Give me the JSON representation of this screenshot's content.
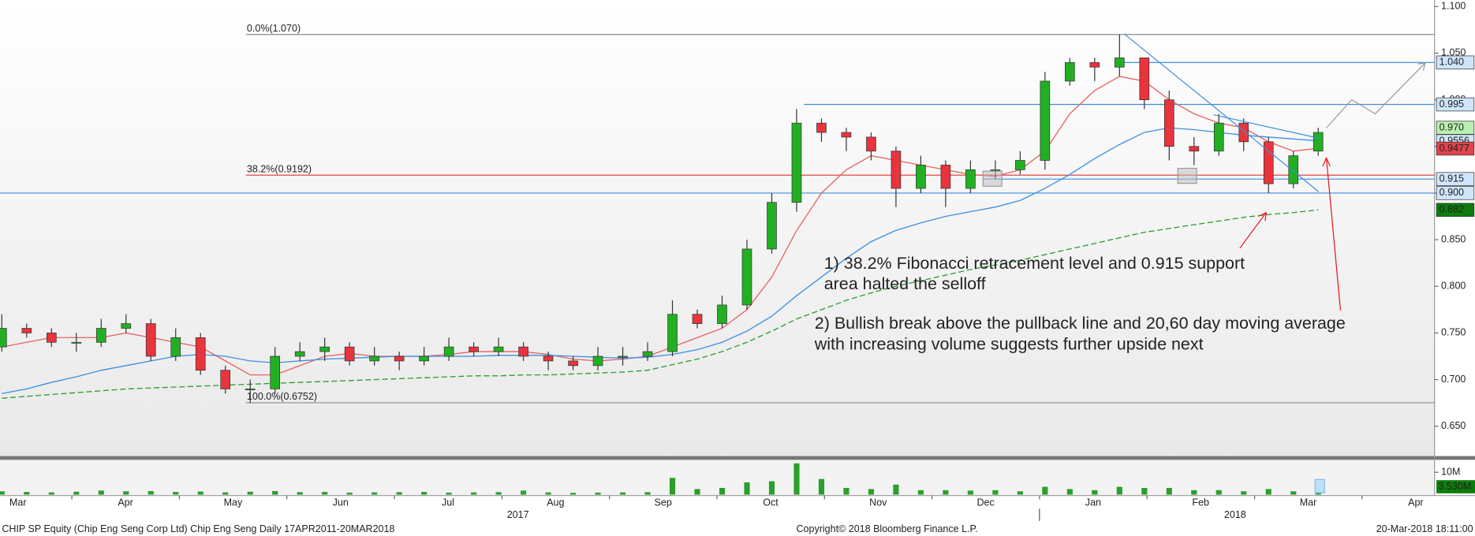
{
  "chart_data": {
    "type": "candlestick",
    "x": [
      0.35,
      0.581,
      0.812,
      1.043,
      1.274,
      1.505,
      1.736,
      1.967,
      2.198,
      2.429,
      2.66,
      2.891,
      3.122,
      3.353,
      3.584,
      3.815,
      4.046,
      4.277,
      4.508,
      4.739,
      4.97,
      5.201,
      5.432,
      5.663,
      5.894,
      6.125,
      6.356,
      6.587,
      6.818,
      7.049,
      7.28,
      7.511,
      7.742,
      7.973,
      8.204,
      8.435,
      8.666,
      8.897,
      9.128,
      9.359,
      9.59,
      9.821,
      10.052,
      10.283,
      10.514,
      10.745,
      10.976,
      11.207,
      11.438,
      11.669,
      11.9,
      12.131,
      12.362,
      12.593
    ],
    "open": [
      0.735,
      0.755,
      0.75,
      0.74,
      0.74,
      0.755,
      0.76,
      0.725,
      0.745,
      0.71,
      0.69,
      0.69,
      0.725,
      0.73,
      0.735,
      0.72,
      0.725,
      0.72,
      0.725,
      0.735,
      0.73,
      0.735,
      0.725,
      0.72,
      0.715,
      0.725,
      0.725,
      0.73,
      0.77,
      0.76,
      0.78,
      0.84,
      0.89,
      0.975,
      0.965,
      0.96,
      0.945,
      0.905,
      0.93,
      0.905,
      0.925,
      0.925,
      0.935,
      1.02,
      1.04,
      1.035,
      1.045,
      1.0,
      0.95,
      0.945,
      0.975,
      0.955,
      0.91,
      0.945
    ],
    "high": [
      0.77,
      0.76,
      0.755,
      0.75,
      0.765,
      0.77,
      0.765,
      0.755,
      0.75,
      0.715,
      0.7,
      0.735,
      0.74,
      0.745,
      0.74,
      0.735,
      0.73,
      0.735,
      0.745,
      0.74,
      0.745,
      0.74,
      0.73,
      0.725,
      0.735,
      0.735,
      0.74,
      0.785,
      0.775,
      0.79,
      0.85,
      0.9,
      0.99,
      0.98,
      0.97,
      0.965,
      0.95,
      0.94,
      0.935,
      0.935,
      0.935,
      0.945,
      1.03,
      1.045,
      1.045,
      1.07,
      1.045,
      1.01,
      0.96,
      0.985,
      0.98,
      0.96,
      0.945,
      0.97
    ],
    "low": [
      0.73,
      0.745,
      0.735,
      0.73,
      0.735,
      0.75,
      0.72,
      0.72,
      0.705,
      0.685,
      0.675,
      0.685,
      0.72,
      0.72,
      0.715,
      0.715,
      0.71,
      0.715,
      0.72,
      0.725,
      0.725,
      0.72,
      0.71,
      0.71,
      0.71,
      0.715,
      0.72,
      0.725,
      0.755,
      0.755,
      0.775,
      0.835,
      0.88,
      0.955,
      0.945,
      0.935,
      0.885,
      0.9,
      0.885,
      0.9,
      0.915,
      0.92,
      0.925,
      1.015,
      1.02,
      1.025,
      0.99,
      0.935,
      0.93,
      0.94,
      0.945,
      0.9,
      0.905,
      0.94
    ],
    "close": [
      0.755,
      0.75,
      0.74,
      0.74,
      0.755,
      0.76,
      0.725,
      0.745,
      0.71,
      0.69,
      0.69,
      0.725,
      0.73,
      0.735,
      0.72,
      0.725,
      0.72,
      0.725,
      0.735,
      0.73,
      0.735,
      0.725,
      0.72,
      0.715,
      0.725,
      0.725,
      0.73,
      0.77,
      0.76,
      0.78,
      0.84,
      0.89,
      0.975,
      0.965,
      0.96,
      0.945,
      0.905,
      0.93,
      0.905,
      0.925,
      0.925,
      0.935,
      1.02,
      1.04,
      1.035,
      1.045,
      1.0,
      0.95,
      0.945,
      0.975,
      0.955,
      0.91,
      0.94,
      0.965
    ],
    "up_color": "#22b022",
    "down_color": "#e8343c",
    "xlim": [
      0.333,
      13.675
    ],
    "ylim": [
      0.618,
      1.107
    ],
    "yticks": [
      {
        "value": 0.65,
        "label": "0.650"
      },
      {
        "value": 0.7,
        "label": "0.700"
      },
      {
        "value": 0.75,
        "label": "0.750"
      },
      {
        "value": 0.8,
        "label": "0.800"
      },
      {
        "value": 0.85,
        "label": "0.850"
      },
      {
        "value": 0.9,
        "label": "0.900"
      },
      {
        "value": 0.95,
        "label": "0.950"
      },
      {
        "value": 1.0,
        "label": "1.000"
      },
      {
        "value": 1.05,
        "label": "1.050"
      },
      {
        "value": 1.1,
        "label": "1.100"
      }
    ],
    "xticks": [
      {
        "value": 0.5,
        "label": "Mar"
      },
      {
        "value": 1.5,
        "label": "Apr"
      },
      {
        "value": 2.5,
        "label": "May"
      },
      {
        "value": 3.5,
        "label": "Jun"
      },
      {
        "value": 4.5,
        "label": "Jul"
      },
      {
        "value": 5.5,
        "label": "Aug"
      },
      {
        "value": 6.5,
        "label": "Sep"
      },
      {
        "value": 7.5,
        "label": "Oct"
      },
      {
        "value": 8.5,
        "label": "Nov"
      },
      {
        "value": 9.5,
        "label": "Dec"
      },
      {
        "value": 10.5,
        "label": "Jan"
      },
      {
        "value": 11.5,
        "label": "Feb"
      },
      {
        "value": 12.5,
        "label": "Mar"
      },
      {
        "value": 13.5,
        "label": "Apr"
      }
    ],
    "x2ticks": [
      {
        "value": 5.15,
        "label": "2017"
      },
      {
        "value": 11.82,
        "label": "2018"
      }
    ],
    "moving_averages": [
      {
        "color": "#e86060",
        "dash": "none",
        "values": [
          0.735,
          0.74,
          0.745,
          0.745,
          0.745,
          0.75,
          0.745,
          0.74,
          0.735,
          0.72,
          0.705,
          0.705,
          0.715,
          0.725,
          0.728,
          0.725,
          0.725,
          0.725,
          0.727,
          0.73,
          0.73,
          0.73,
          0.727,
          0.722,
          0.72,
          0.722,
          0.725,
          0.735,
          0.745,
          0.755,
          0.775,
          0.81,
          0.86,
          0.9,
          0.925,
          0.94,
          0.935,
          0.93,
          0.925,
          0.92,
          0.918,
          0.925,
          0.945,
          0.985,
          1.01,
          1.025,
          1.02,
          1.0,
          0.985,
          0.975,
          0.97,
          0.955,
          0.945,
          0.948
        ]
      },
      {
        "color": "#3b8fe0",
        "dash": "none",
        "values": [
          0.685,
          0.69,
          0.697,
          0.703,
          0.71,
          0.715,
          0.72,
          0.725,
          0.727,
          0.725,
          0.72,
          0.718,
          0.72,
          0.722,
          0.723,
          0.724,
          0.725,
          0.725,
          0.725,
          0.725,
          0.726,
          0.726,
          0.726,
          0.725,
          0.724,
          0.723,
          0.724,
          0.727,
          0.732,
          0.74,
          0.752,
          0.768,
          0.79,
          0.81,
          0.83,
          0.848,
          0.86,
          0.868,
          0.875,
          0.88,
          0.885,
          0.892,
          0.905,
          0.92,
          0.937,
          0.952,
          0.965,
          0.97,
          0.968,
          0.965,
          0.962,
          0.96,
          0.958,
          0.956
        ]
      },
      {
        "color": "#2e9a2e",
        "dash": "6,3",
        "values": [
          0.68,
          0.682,
          0.684,
          0.686,
          0.688,
          0.69,
          0.691,
          0.692,
          0.693,
          0.694,
          0.695,
          0.696,
          0.697,
          0.698,
          0.699,
          0.7,
          0.701,
          0.702,
          0.703,
          0.704,
          0.704,
          0.705,
          0.705,
          0.706,
          0.707,
          0.708,
          0.71,
          0.716,
          0.722,
          0.73,
          0.74,
          0.752,
          0.765,
          0.775,
          0.785,
          0.793,
          0.8,
          0.806,
          0.812,
          0.818,
          0.823,
          0.828,
          0.834,
          0.84,
          0.846,
          0.852,
          0.858,
          0.862,
          0.866,
          0.87,
          0.874,
          0.877,
          0.879,
          0.882
        ]
      }
    ],
    "fib_levels": [
      {
        "value": 1.07,
        "label": "0.0%(1.070)",
        "color": "#8a8a8a",
        "xstart": 2.62
      },
      {
        "value": 0.9192,
        "label": "38.2%(0.9192)",
        "color": "#e03030",
        "xstart": 2.62
      },
      {
        "value": 0.6752,
        "label": "100.0%(0.6752)",
        "color": "#8a8a8a",
        "xstart": 2.62
      }
    ],
    "hlines": [
      {
        "value": 1.04,
        "xstart": 10.79,
        "color": "#3b8fe0"
      },
      {
        "value": 0.995,
        "xstart": 7.81,
        "color": "#3b8fe0"
      },
      {
        "value": 0.915,
        "xstart": 9.47,
        "color": "#3b8fe0"
      },
      {
        "value": 0.9,
        "xstart": 0.333,
        "color": "#3b8fe0"
      }
    ],
    "tags": [
      {
        "value": 1.04,
        "label": "1.040",
        "fill": "#cfe5fb",
        "text_color": "#000000"
      },
      {
        "value": 0.995,
        "label": "0.995",
        "fill": "#cfe5fb",
        "text_color": "#000000"
      },
      {
        "value": 0.97,
        "label": "0.970",
        "fill": "#b8f0ae",
        "text_color": "#000000"
      },
      {
        "value": 0.9556,
        "label": "0.9556",
        "fill": "#cfe5fb",
        "text_color": "#000000"
      },
      {
        "value": 0.9477,
        "label": "0.9477",
        "fill": "#e0434b",
        "text_color": "#000000"
      },
      {
        "value": 0.915,
        "label": "0.915",
        "fill": "#cfe5fb",
        "text_color": "#000000"
      },
      {
        "value": 0.9,
        "label": "0.900",
        "fill": "#cfe5fb",
        "text_color": "#000000"
      },
      {
        "value": 0.882,
        "label": "0.882",
        "fill": "#0c7d0c",
        "text_color": "#ffffff"
      }
    ],
    "volume": {
      "color": "#2aa02a",
      "ylim": [
        0,
        16
      ],
      "yticks": [
        {
          "value": 10,
          "label": "10M"
        }
      ],
      "values": [
        1.5,
        1.2,
        1.0,
        1.3,
        1.8,
        1.5,
        1.6,
        1.2,
        1.4,
        1.0,
        1.3,
        1.6,
        1.1,
        1.2,
        0.9,
        1.0,
        1.1,
        1.2,
        0.9,
        1.0,
        1.1,
        1.8,
        1.0,
        0.8,
        0.9,
        1.0,
        1.1,
        7.5,
        2.5,
        3.0,
        5.5,
        6.0,
        14.0,
        7.0,
        3.0,
        2.5,
        4.5,
        2.0,
        2.0,
        1.8,
        2.0,
        1.5,
        3.5,
        2.5,
        2.0,
        3.5,
        3.0,
        3.0,
        2.0,
        2.0,
        1.5,
        2.5,
        1.5,
        3.53
      ],
      "last_label": "3.530M"
    },
    "annotations": [
      {
        "lines": [
          "1) 38.2% Fibonacci retracement level and 0.915 support",
          "area halted the selloff"
        ],
        "color": "#e8101a"
      },
      {
        "lines": [
          "2) Bullish break above the pullback line and 20,60 day moving average",
          "with increasing volume suggests further upside next"
        ],
        "color": "#e8101a"
      }
    ],
    "footer": {
      "left": "CHIP SP Equity (Chip Eng Seng Corp Ltd) Chip Eng Seng  Daily 17APR2011-20MAR2018",
      "center": "Copyright© 2018 Bloomberg Finance L.P.",
      "right": "20-Mar-2018 18:11:00"
    }
  }
}
